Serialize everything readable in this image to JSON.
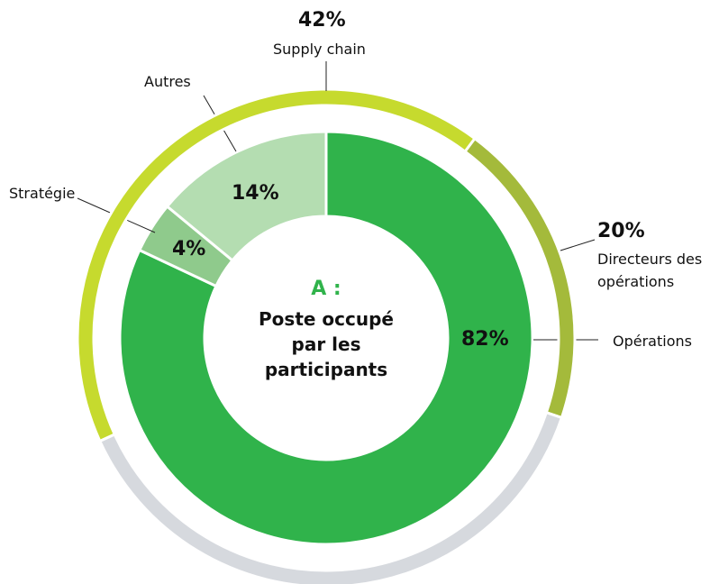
{
  "chart_data": [
    {
      "type": "donut",
      "title": "A :",
      "subtitle": "Poste occupé par les participants",
      "categories": [
        "Opérations",
        "Stratégie",
        "Autres"
      ],
      "values": [
        82,
        4,
        14
      ],
      "value_labels": [
        "82%",
        "4%",
        "14%"
      ],
      "colors": [
        "#30b34b",
        "#8fca8c",
        "#b4ddb1"
      ]
    },
    {
      "type": "ring",
      "categories": [
        "Supply chain",
        "Directeurs des opérations",
        null
      ],
      "values": [
        42,
        20,
        38
      ],
      "value_labels": [
        "42%",
        "20%",
        null
      ],
      "colors": [
        "#c6da2e",
        "#a4ba3b",
        "#d6d9de"
      ]
    }
  ]
}
